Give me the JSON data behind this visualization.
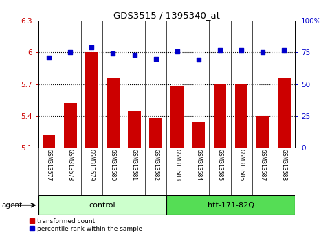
{
  "title": "GDS3515 / 1395340_at",
  "samples": [
    "GSM313577",
    "GSM313578",
    "GSM313579",
    "GSM313580",
    "GSM313581",
    "GSM313582",
    "GSM313583",
    "GSM313584",
    "GSM313585",
    "GSM313586",
    "GSM313587",
    "GSM313588"
  ],
  "red_values": [
    5.22,
    5.52,
    6.0,
    5.76,
    5.45,
    5.38,
    5.68,
    5.35,
    5.7,
    5.7,
    5.4,
    5.76
  ],
  "blue_values": [
    71,
    75,
    79,
    74,
    73,
    70,
    76,
    69,
    77,
    77,
    75,
    77
  ],
  "ylim_left": [
    5.1,
    6.3
  ],
  "ylim_right": [
    0,
    100
  ],
  "yticks_left": [
    5.1,
    5.4,
    5.7,
    6.0,
    6.3
  ],
  "yticks_right": [
    0,
    25,
    50,
    75,
    100
  ],
  "ytick_labels_left": [
    "5.1",
    "5.4",
    "5.7",
    "6",
    "6.3"
  ],
  "ytick_labels_right": [
    "0",
    "25",
    "50",
    "75",
    "100%"
  ],
  "hlines": [
    5.4,
    5.7,
    6.0
  ],
  "group_labels": [
    "control",
    "htt-171-82Q"
  ],
  "group_n": [
    6,
    6
  ],
  "agent_label": "agent",
  "legend": [
    {
      "label": "transformed count",
      "color": "#cc0000"
    },
    {
      "label": "percentile rank within the sample",
      "color": "#0000cc"
    }
  ],
  "bar_color": "#cc0000",
  "dot_color": "#0000cc",
  "bg_color": "#ffffff",
  "ctrl_color": "#ccffcc",
  "htt_color": "#55dd55",
  "tick_color_left": "#cc0000",
  "tick_color_right": "#0000cc",
  "bar_bottom": 5.1,
  "samp_bg": "#cccccc"
}
